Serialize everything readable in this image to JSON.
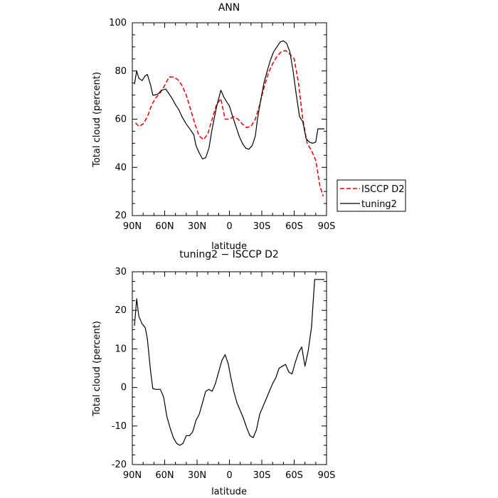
{
  "chart_data": [
    {
      "type": "line",
      "title": "ANN",
      "xlabel": "latitude",
      "ylabel": "Total cloud (percent)",
      "xticks": [
        "90N",
        "60N",
        "30N",
        "0",
        "30S",
        "60S",
        "90S"
      ],
      "xlim": [
        90,
        -90
      ],
      "ylim": [
        20,
        100
      ],
      "yticks": [
        20,
        40,
        60,
        80,
        100
      ],
      "legend": "right",
      "series": [
        {
          "name": "ISCCP D2",
          "color": "#e60000",
          "dash": "dashed",
          "x": [
            87,
            84,
            80,
            76,
            72,
            68,
            64,
            60,
            56,
            52,
            48,
            44,
            40,
            36,
            32,
            28,
            24,
            20,
            16,
            12,
            8,
            4,
            0,
            -4,
            -8,
            -12,
            -16,
            -20,
            -24,
            -28,
            -32,
            -36,
            -40,
            -44,
            -48,
            -52,
            -56,
            -60,
            -64,
            -68,
            -72,
            -76,
            -80,
            -84,
            -87
          ],
          "y": [
            58.5,
            57,
            58,
            61,
            66,
            69,
            71,
            74,
            77.5,
            77.5,
            76.5,
            74,
            70,
            64,
            58,
            53,
            51.5,
            54,
            60,
            66,
            68.5,
            60,
            60,
            61,
            60,
            58,
            56.5,
            57,
            60,
            66,
            73,
            79,
            83,
            86,
            88,
            88.5,
            87,
            85,
            75,
            60,
            50,
            47,
            43,
            32,
            28
          ]
        },
        {
          "name": "tuning2",
          "color": "#000000",
          "dash": "solid",
          "x": [
            88,
            86,
            84,
            81,
            78,
            76,
            73,
            71,
            69,
            66,
            63,
            59,
            56,
            53,
            50,
            47,
            44,
            40,
            36,
            33,
            31,
            28,
            25,
            22,
            19,
            16,
            12,
            8,
            5,
            3,
            0,
            -3,
            -6,
            -9,
            -12,
            -15,
            -18,
            -21,
            -24,
            -26,
            -29,
            -32,
            -35,
            -38,
            -41,
            -44,
            -47,
            -50,
            -53,
            -56,
            -59,
            -62,
            -65,
            -68,
            -71,
            -74,
            -77,
            -80,
            -82,
            -85,
            -88
          ],
          "y": [
            74.5,
            80,
            77,
            76,
            78,
            78.5,
            74,
            70,
            70,
            70.5,
            72,
            72.5,
            70.5,
            68.5,
            66,
            64,
            61,
            58,
            55.5,
            53.5,
            49,
            46,
            43.5,
            44,
            48,
            56,
            65,
            72,
            69,
            67.5,
            65.5,
            61,
            57,
            53,
            50,
            48,
            47.5,
            49,
            53,
            60,
            68,
            75,
            80,
            84.5,
            88,
            90,
            92,
            92.5,
            91.5,
            88,
            80,
            70,
            61,
            59,
            52,
            50.5,
            50,
            50.5,
            56,
            56,
            56
          ]
        }
      ]
    },
    {
      "type": "line",
      "title": "tuning2 − ISCCP D2",
      "xlabel": "latitude",
      "ylabel": "Total cloud (percent)",
      "xticks": [
        "90N",
        "60N",
        "30N",
        "0",
        "30S",
        "60S",
        "90S"
      ],
      "xlim": [
        90,
        -90
      ],
      "ylim": [
        -20,
        30
      ],
      "yticks": [
        -20,
        -10,
        0,
        10,
        20,
        30
      ],
      "series": [
        {
          "color": "#000000",
          "dash": "solid",
          "x": [
            88,
            86,
            84,
            81,
            78,
            76,
            73,
            71,
            68,
            64,
            61,
            58,
            55,
            52,
            49,
            46,
            43,
            40,
            37,
            34,
            31,
            28,
            25,
            22,
            19,
            16,
            13,
            10,
            7,
            4,
            1,
            -1,
            -4,
            -7,
            -10,
            -13,
            -16,
            -19,
            -22,
            -25,
            -28,
            -31,
            -34,
            -37,
            -40,
            -43,
            -46,
            -49,
            -52,
            -55,
            -58,
            -61,
            -64,
            -67,
            -70,
            -73,
            -76,
            -79,
            -82,
            -85,
            -88
          ],
          "y": [
            16,
            23,
            18.5,
            16.5,
            15.5,
            12.5,
            4,
            -0.3,
            -0.5,
            -0.5,
            -2.5,
            -7.5,
            -10.5,
            -13,
            -14.5,
            -15,
            -14.5,
            -12.5,
            -12.5,
            -11.5,
            -8.5,
            -7,
            -4,
            -1,
            -0.5,
            -1,
            1,
            4,
            7,
            8.5,
            6,
            3,
            -1,
            -4,
            -6,
            -8,
            -10.5,
            -12.5,
            -13,
            -11,
            -7,
            -5,
            -3,
            -1,
            1,
            2.5,
            5,
            5.5,
            6,
            4,
            3.5,
            6.5,
            9,
            10.5,
            5.5,
            9.5,
            15.5,
            28,
            28,
            28,
            28
          ]
        }
      ]
    }
  ],
  "legend_labels": [
    "ISCCP D2",
    "tuning2"
  ]
}
